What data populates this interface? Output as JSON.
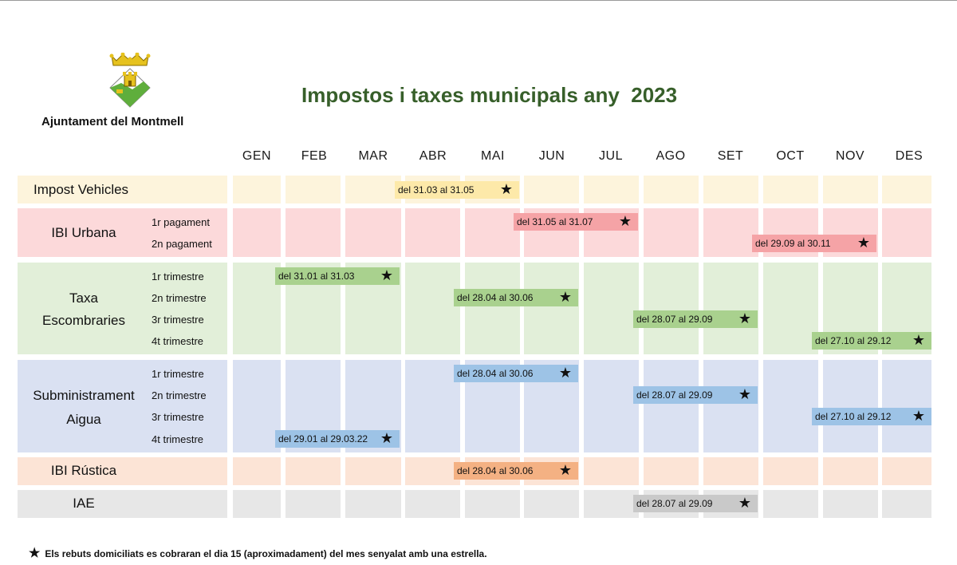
{
  "header": {
    "org_name": "Ajuntament del Montmell",
    "title": "Impostos i taxes municipals any  2023"
  },
  "months": [
    "GEN",
    "FEB",
    "MAR",
    "ABR",
    "MAI",
    "JUN",
    "JUL",
    "AGO",
    "SET",
    "OCT",
    "NOV",
    "DES"
  ],
  "rows": {
    "vehicles": {
      "label": "Impost Vehicles",
      "bar": "del 31.03 al 31.05"
    },
    "ibi_urbana": {
      "label": "IBI Urbana",
      "subs": [
        "1r pagament",
        "2n pagament"
      ],
      "bars": [
        "del 31.05 al 31.07",
        "del 29.09 al 30.11"
      ]
    },
    "escombraries": {
      "label1": "Taxa",
      "label2": "Escombraries",
      "subs": [
        "1r trimestre",
        "2n trimestre",
        "3r trimestre",
        "4t trimestre"
      ],
      "bars": [
        "del 31.01 al 31.03",
        "del 28.04 al 30.06",
        "del 28.07 al 29.09",
        "del 27.10 al 29.12"
      ]
    },
    "aigua": {
      "label1": "Subministrament",
      "label2": "Aigua",
      "subs": [
        "1r trimestre",
        "2n trimestre",
        "3r trimestre",
        "4t trimestre"
      ],
      "bars": [
        "del 28.04 al 30.06",
        "del 28.07 al 29.09",
        "del 27.10 al 29.12",
        "del 29.01 al 29.03.22"
      ]
    },
    "rustica": {
      "label": "IBI Rústica",
      "bar": "del 28.04 al 30.06"
    },
    "iae": {
      "label": "IAE",
      "bar": "del 28.07 al 29.09"
    }
  },
  "star": "★",
  "footnote": "Els rebuts domiciliats es cobraran el dia 15 (aproximadament) del mes senyalat amb una estrella.",
  "colors": {
    "title": "#375f2a",
    "vehicles_bg": "#fdf4dc",
    "vehicles_bar": "#fde9a9",
    "urbana_bg": "#fcd9da",
    "urbana_bar": "#f5a3a6",
    "escombraries_bg": "#e2efd9",
    "escombraries_bar": "#a9d18e",
    "aigua_bg": "#dae1f2",
    "aigua_bar": "#9dc3e6",
    "rustica_bg": "#fce4d6",
    "rustica_bar": "#f4b183",
    "iae_bg": "#e7e7e7",
    "iae_bar": "#c9c9c9"
  }
}
